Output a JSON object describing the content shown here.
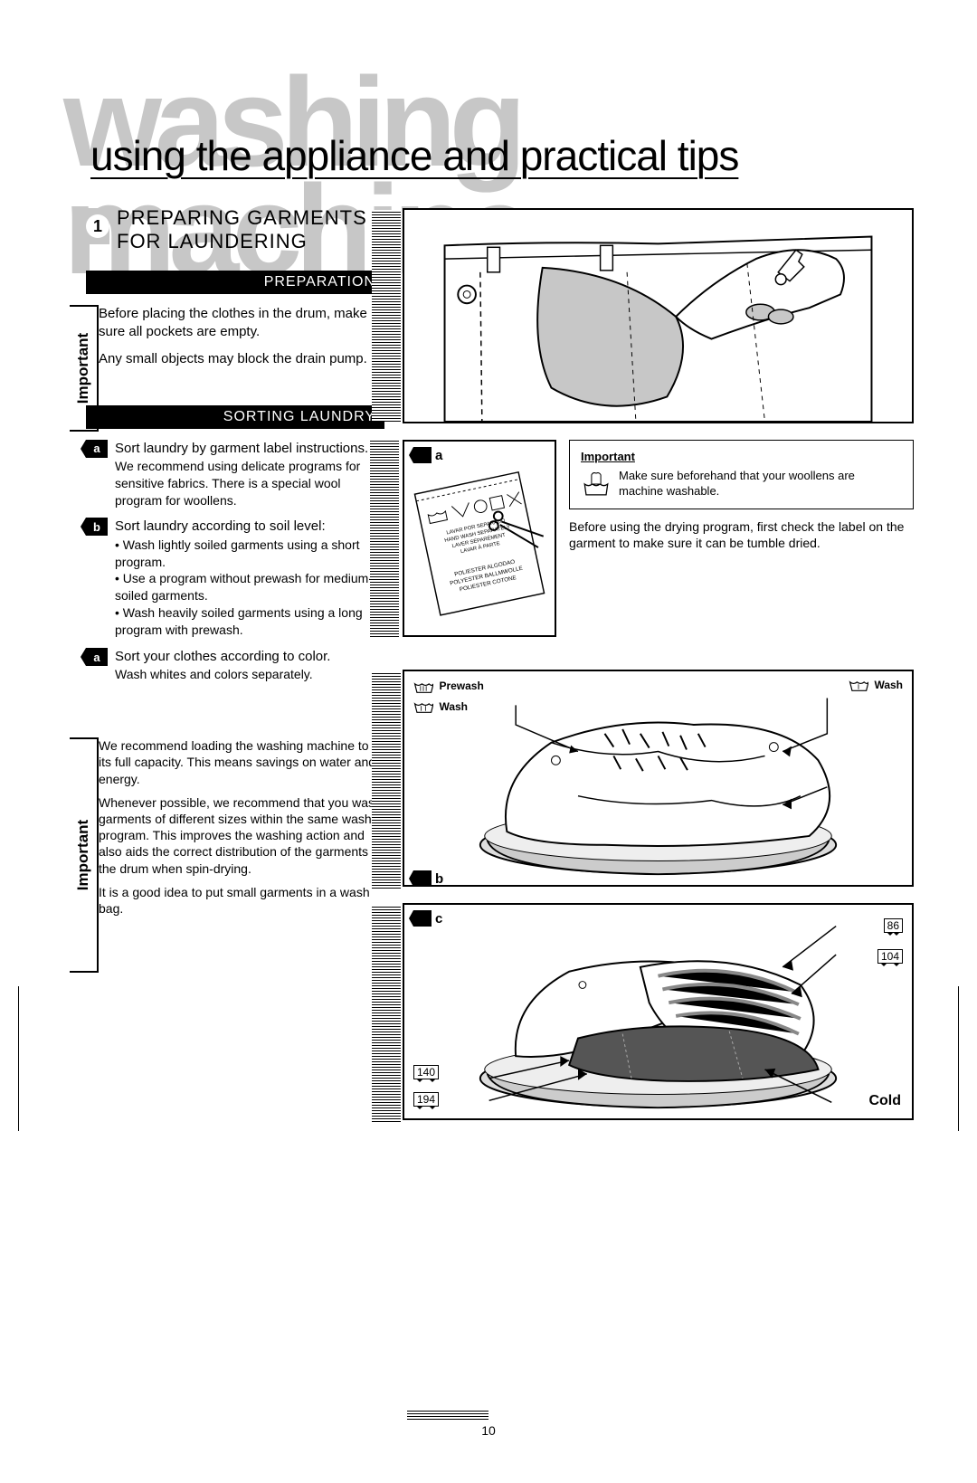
{
  "background_title": "washing machine",
  "main_title": "using the appliance and practical tips",
  "section_number": "1",
  "section_heading": "PREPARING GARMENTS FOR LAUNDERING",
  "sub_preparation": "PREPARATION",
  "sub_sorting": "SORTING LAUNDRY",
  "important_label": "Important",
  "prep_p1": "Before placing the clothes in the drum, make sure all pockets are empty.",
  "prep_p2": "Any small objects may block the drain pump.",
  "sort_items": [
    {
      "tag": "a",
      "lead": "Sort laundry by garment label instructions.",
      "sub": "We recommend using delicate programs for sensitive fabrics. There is a special wool program for woollens."
    },
    {
      "tag": "b",
      "lead": "Sort laundry according to soil level:",
      "sub": "• Wash lightly soiled garments using a short program.\n• Use a program without prewash for medium-soiled garments.\n• Wash heavily soiled garments using a long program with prewash."
    },
    {
      "tag": "a",
      "lead": "Sort your clothes according to color.",
      "sub": "Wash whites and colors separately."
    }
  ],
  "important2_p1": "We recommend loading the washing machine to its full capacity. This means savings on water and energy.",
  "important2_p2": "Whenever possible, we recommend that you wash garments of different sizes within the same wash program. This improves the washing action and also aids the correct distribution of the garments in the drum when spin-drying.",
  "important2_p3": "It is a good idea to put small garments in a wash bag.",
  "sidepanel": {
    "hdr": "Important",
    "text": "Make sure beforehand that your woollens are machine washable.",
    "below": "Before using the drying program, first check the label on the garment to make sure it can be tumble dried."
  },
  "fig_labels": {
    "a": "a",
    "b": "b",
    "c": "c"
  },
  "wash_labels": {
    "prewash": "Prewash",
    "wash": "Wash"
  },
  "temps": {
    "t1": "86",
    "t2": "104",
    "t3": "140",
    "t4": "194"
  },
  "cold_label": "Cold",
  "label_text": {
    "l1": "LAVAR POR SEPARADO",
    "l2": "HAND WASH SEPARATELY",
    "l3": "LAVER SÉPARÉMENT",
    "l4": "LAVAR À PARTE",
    "l5": "POLIESTER  ALGODAO",
    "l6": "POLYESTER  BALLMWOLLE",
    "l7": "POLIESTER  COTONE"
  },
  "page_number": "10",
  "colors": {
    "bg_title": "#c7c7c7",
    "accent_grey": "#c7c7c7",
    "black": "#000000",
    "white": "#ffffff"
  }
}
